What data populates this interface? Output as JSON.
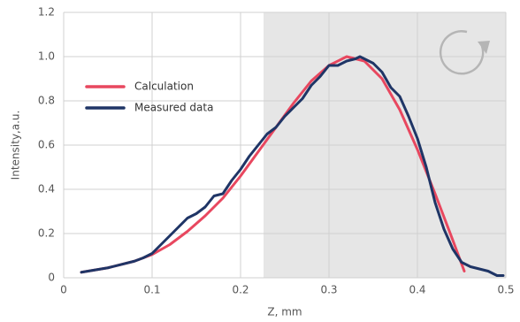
{
  "chart_data": {
    "type": "line",
    "xlabel": "Z, mm",
    "ylabel": "Intensity,a.u.",
    "xlim": [
      0,
      0.5
    ],
    "ylim": [
      0,
      1.2
    ],
    "xticks": [
      0,
      0.1,
      0.2,
      0.3,
      0.4,
      0.5
    ],
    "yticks": [
      0,
      0.2,
      0.4,
      0.6,
      0.8,
      {
        "value": 1,
        "label": "1.0"
      },
      1.2
    ],
    "grid": true,
    "legend": "upper left",
    "shaded_xlim": [
      0.226,
      0.5
    ],
    "shade_color": "#e6e6e6",
    "series": [
      {
        "name": "Calculation",
        "color": "#e8475f",
        "x": [
          0.02,
          0.05,
          0.08,
          0.1,
          0.12,
          0.14,
          0.16,
          0.18,
          0.2,
          0.22,
          0.24,
          0.26,
          0.28,
          0.3,
          0.32,
          0.34,
          0.36,
          0.38,
          0.4,
          0.42,
          0.44,
          0.453
        ],
        "values": [
          0.025,
          0.045,
          0.075,
          0.105,
          0.15,
          0.21,
          0.28,
          0.36,
          0.46,
          0.57,
          0.68,
          0.79,
          0.89,
          0.96,
          1.0,
          0.98,
          0.9,
          0.76,
          0.58,
          0.38,
          0.17,
          0.03
        ]
      },
      {
        "name": "Measured data",
        "color": "#1f3566",
        "x": [
          0.02,
          0.05,
          0.08,
          0.09,
          0.1,
          0.11,
          0.12,
          0.13,
          0.14,
          0.15,
          0.16,
          0.17,
          0.18,
          0.19,
          0.2,
          0.21,
          0.22,
          0.23,
          0.24,
          0.25,
          0.26,
          0.27,
          0.28,
          0.29,
          0.3,
          0.31,
          0.32,
          0.33,
          0.335,
          0.34,
          0.35,
          0.36,
          0.37,
          0.38,
          0.39,
          0.4,
          0.41,
          0.42,
          0.43,
          0.44,
          0.45,
          0.46,
          0.47,
          0.48,
          0.49,
          0.497
        ],
        "values": [
          0.025,
          0.045,
          0.075,
          0.09,
          0.11,
          0.15,
          0.19,
          0.23,
          0.27,
          0.29,
          0.32,
          0.37,
          0.38,
          0.44,
          0.49,
          0.55,
          0.6,
          0.65,
          0.68,
          0.73,
          0.77,
          0.81,
          0.87,
          0.91,
          0.96,
          0.96,
          0.98,
          0.99,
          1.0,
          0.99,
          0.97,
          0.93,
          0.86,
          0.82,
          0.73,
          0.63,
          0.5,
          0.34,
          0.22,
          0.13,
          0.07,
          0.05,
          0.04,
          0.03,
          0.01,
          0.01
        ]
      }
    ]
  }
}
